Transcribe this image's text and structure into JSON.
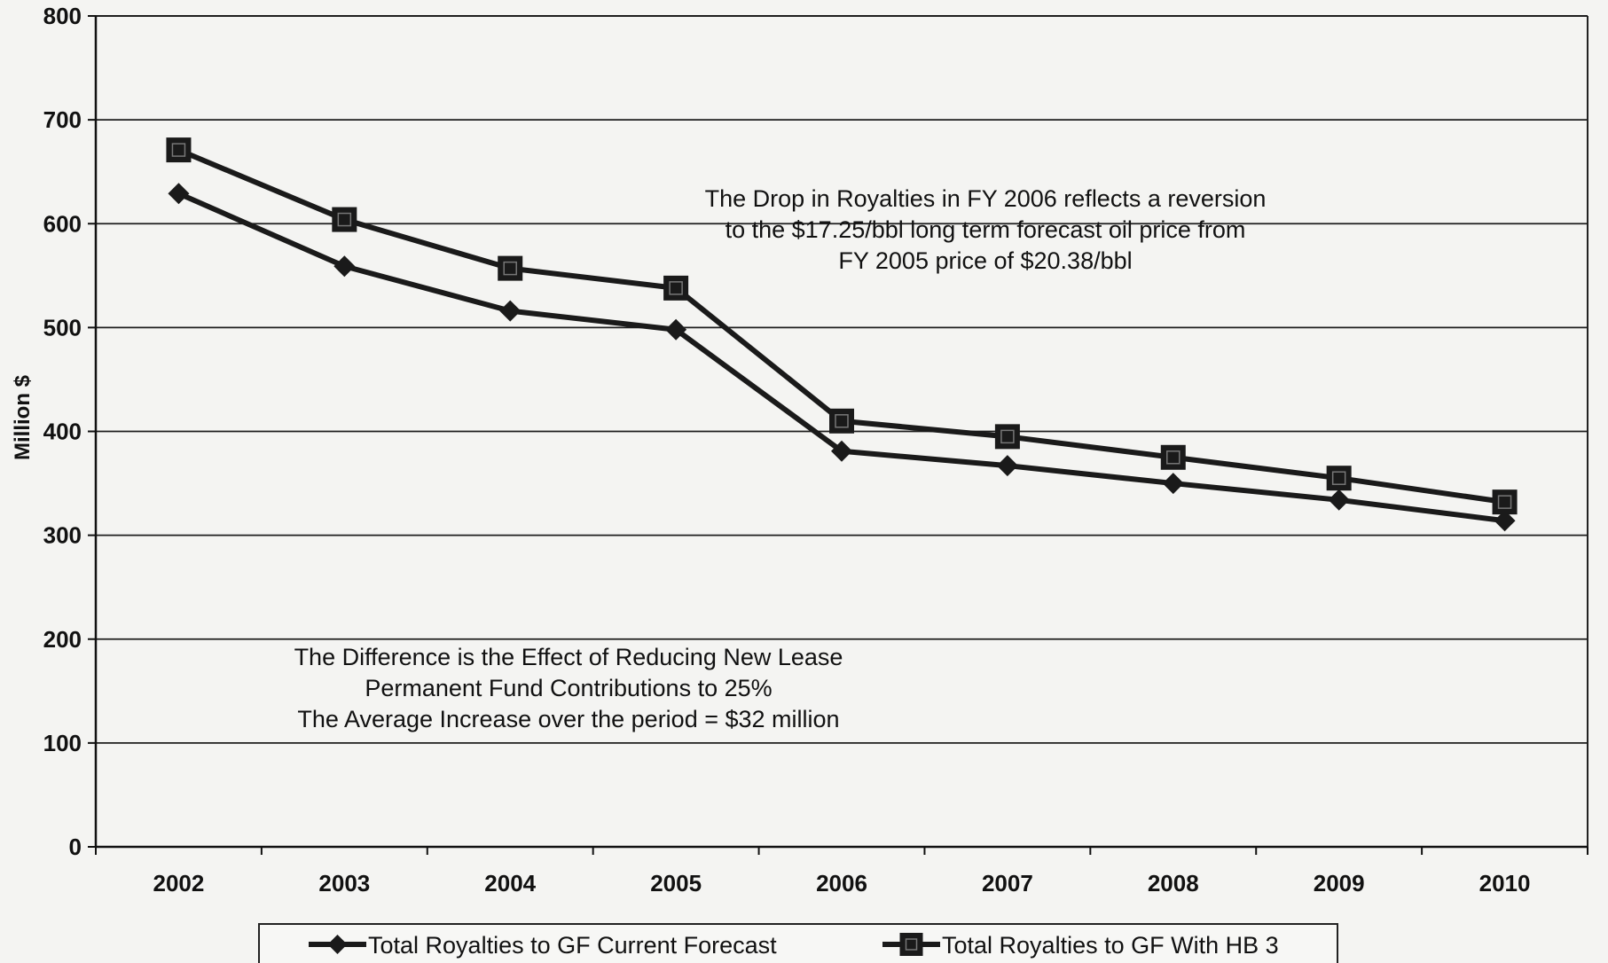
{
  "chart_data": {
    "type": "line",
    "title": "",
    "xlabel": "",
    "ylabel": "Million $",
    "ylim": [
      0,
      800
    ],
    "yticks": [
      "0",
      "100",
      "200",
      "300",
      "400",
      "500",
      "600",
      "700",
      "800"
    ],
    "categories": [
      "2002",
      "2003",
      "2004",
      "2005",
      "2006",
      "2007",
      "2008",
      "2009",
      "2010"
    ],
    "grid": true,
    "legend_position": "bottom",
    "series": [
      {
        "name": "Total Royalties to GF Current Forecast",
        "marker": "diamond",
        "color": "#1a1a1a",
        "values": [
          629,
          559,
          516,
          498,
          381,
          367,
          350,
          334,
          314
        ]
      },
      {
        "name": "Total Royalties to GF With HB 3",
        "marker": "square",
        "color": "#1a1a1a",
        "values": [
          671,
          604,
          557,
          538,
          410,
          395,
          375,
          355,
          332
        ]
      }
    ],
    "annotations": [
      {
        "id": "drop-note",
        "lines": [
          "The Drop in Royalties in FY 2006 reflects a reversion",
          "to the $17.25/bbl long term forecast oil price from",
          "FY 2005 price of $20.38/bbl"
        ]
      },
      {
        "id": "difference-note",
        "lines": [
          "The Difference is the Effect of Reducing New Lease",
          "Permanent Fund Contributions to 25%",
          "The Average Increase over the period = $32 million"
        ]
      }
    ]
  }
}
